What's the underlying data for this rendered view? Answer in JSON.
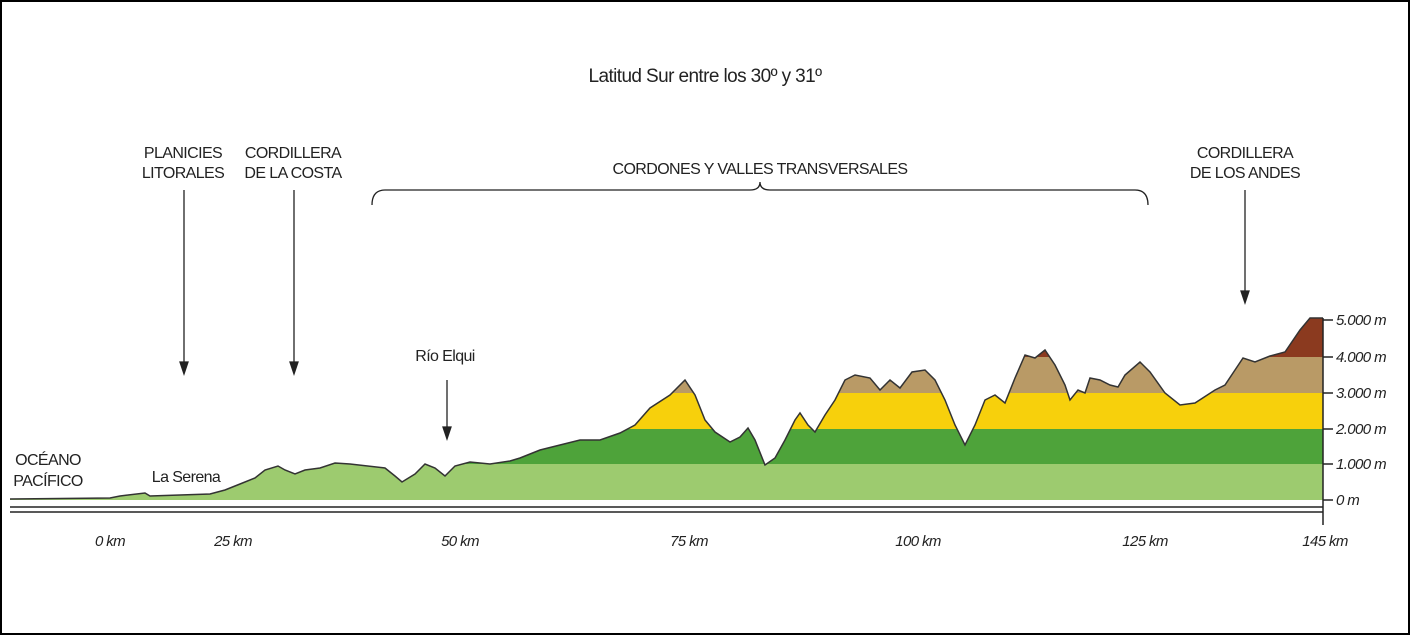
{
  "title": "Latitud Sur entre los 30º y 31º",
  "regions": [
    {
      "lines": [
        "PLANICIES",
        "LITORALES"
      ]
    },
    {
      "lines": [
        "CORDILLERA",
        "DE LA COSTA"
      ]
    },
    {
      "lines": [
        "CORDONES Y VALLES TRANSVERSALES"
      ]
    },
    {
      "lines": [
        "CORDILLERA",
        "DE LOS ANDES"
      ]
    }
  ],
  "places": {
    "ocean": [
      "OCÉANO",
      "PACÍFICO"
    ],
    "city": "La Serena",
    "river": "Río Elqui"
  },
  "x_axis": {
    "ticks": [
      "0 km",
      "25 km",
      "50 km",
      "75 km",
      "100 km",
      "125 km",
      "145 km"
    ]
  },
  "y_axis": {
    "ticks": [
      "5.000 m",
      "4.000 m",
      "3.000 m",
      "2.000 m",
      "1.000 m",
      "0 m"
    ]
  }
}
